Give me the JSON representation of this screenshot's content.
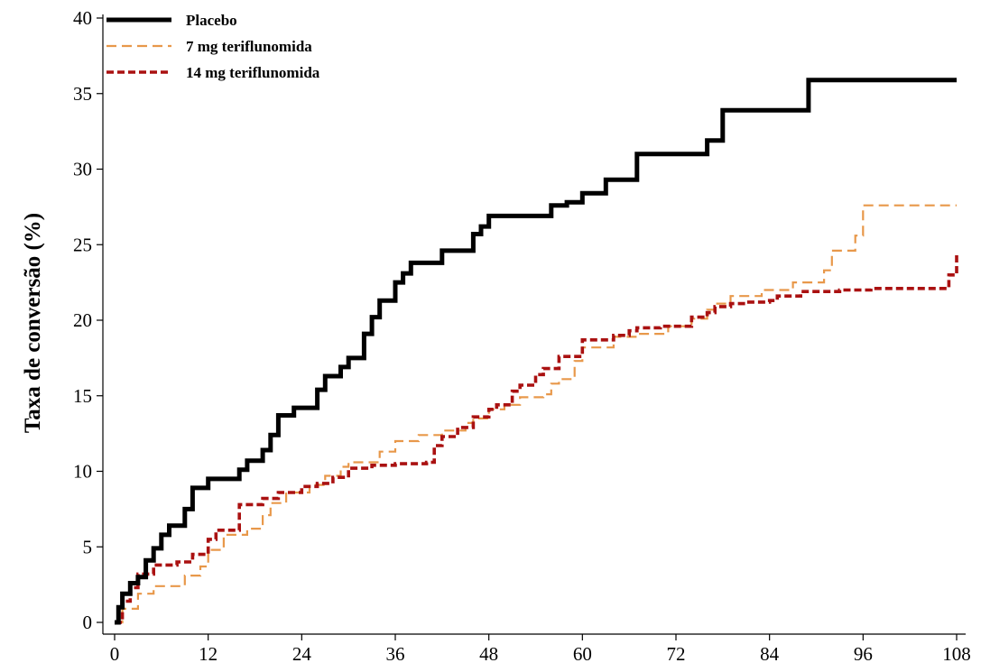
{
  "chart_data": {
    "type": "line",
    "line_shape": "step",
    "title": "",
    "xlabel": "",
    "ylabel": "Taxa de conversão (%)",
    "xlim": [
      0,
      108
    ],
    "ylim": [
      0,
      40
    ],
    "xticks": [
      0,
      12,
      24,
      36,
      48,
      60,
      72,
      84,
      96,
      108
    ],
    "yticks": [
      0,
      5,
      10,
      15,
      20,
      25,
      30,
      35,
      40
    ],
    "grid": false,
    "legend_position": "top-left",
    "series": [
      {
        "name": "Placebo",
        "color": "#000000",
        "dash": "solid",
        "x": [
          0,
          0.5,
          1,
          2,
          3,
          4,
          5,
          6,
          7,
          9,
          10,
          12,
          16,
          17,
          19,
          20,
          21,
          23,
          26,
          27,
          29,
          30,
          32,
          33,
          34,
          36,
          37,
          38,
          42,
          46,
          47,
          48,
          56,
          58,
          60,
          63,
          67,
          76,
          78,
          89,
          108
        ],
        "y": [
          0,
          1,
          1.9,
          2.6,
          3,
          4.1,
          4.9,
          5.8,
          6.4,
          7.5,
          8.9,
          9.5,
          10.1,
          10.7,
          11.4,
          12.4,
          13.7,
          14.2,
          15.4,
          16.3,
          16.9,
          17.5,
          19.1,
          20.2,
          21.3,
          22.5,
          23.1,
          23.8,
          24.6,
          25.7,
          26.2,
          26.9,
          27.6,
          27.8,
          28.4,
          29.3,
          31,
          31.9,
          33.9,
          35.9,
          35.9
        ]
      },
      {
        "name": "7 mg teriflunomida",
        "color": "#e8984a",
        "dash": "dashed",
        "x": [
          0,
          1,
          3,
          5,
          9,
          11,
          12,
          14,
          17,
          19,
          20,
          22,
          25,
          27,
          29,
          30,
          34,
          36,
          39,
          42,
          45,
          46,
          48,
          50,
          52,
          55,
          56,
          57,
          59,
          60,
          64,
          67,
          71,
          74,
          76,
          77,
          79,
          83,
          87,
          91,
          92,
          95,
          96,
          108
        ],
        "y": [
          0,
          0.9,
          1.9,
          2.4,
          3.1,
          3.7,
          4.8,
          5.8,
          6.2,
          7.1,
          7.9,
          8.6,
          9.1,
          9.7,
          10.3,
          10.6,
          11.3,
          12.0,
          12.4,
          12.7,
          13.2,
          13.5,
          14.1,
          14.4,
          14.9,
          15.1,
          15.8,
          16.1,
          17.3,
          18.2,
          18.9,
          19.1,
          19.6,
          20.1,
          20.7,
          21.1,
          21.6,
          22.0,
          22.5,
          23.3,
          24.6,
          25.6,
          27.6,
          27.6
        ]
      },
      {
        "name": "14 mg teriflunomida",
        "color": "#aa1111",
        "dash": "dotted",
        "x": [
          0,
          1,
          2,
          3,
          5,
          8,
          10,
          12,
          13,
          16,
          19,
          21,
          24,
          26,
          28,
          30,
          33,
          36,
          40,
          41,
          42,
          44,
          46,
          48,
          49,
          51,
          52,
          54,
          55,
          57,
          60,
          64,
          66,
          67,
          70,
          74,
          76,
          77,
          79,
          81,
          84,
          85,
          88,
          93,
          97,
          107,
          108
        ],
        "y": [
          0,
          1.4,
          2.3,
          3.2,
          3.8,
          4.0,
          4.5,
          5.5,
          6.1,
          7.8,
          8.2,
          8.6,
          9.0,
          9.2,
          9.6,
          10.2,
          10.4,
          10.5,
          10.6,
          11.7,
          12.3,
          12.9,
          13.6,
          14.1,
          14.4,
          15.3,
          15.7,
          16.4,
          16.8,
          17.6,
          18.7,
          19.0,
          19.3,
          19.5,
          19.6,
          20.2,
          20.5,
          20.9,
          21.1,
          21.2,
          21.3,
          21.6,
          21.9,
          22.0,
          22.1,
          23.0,
          24.3
        ]
      }
    ]
  }
}
